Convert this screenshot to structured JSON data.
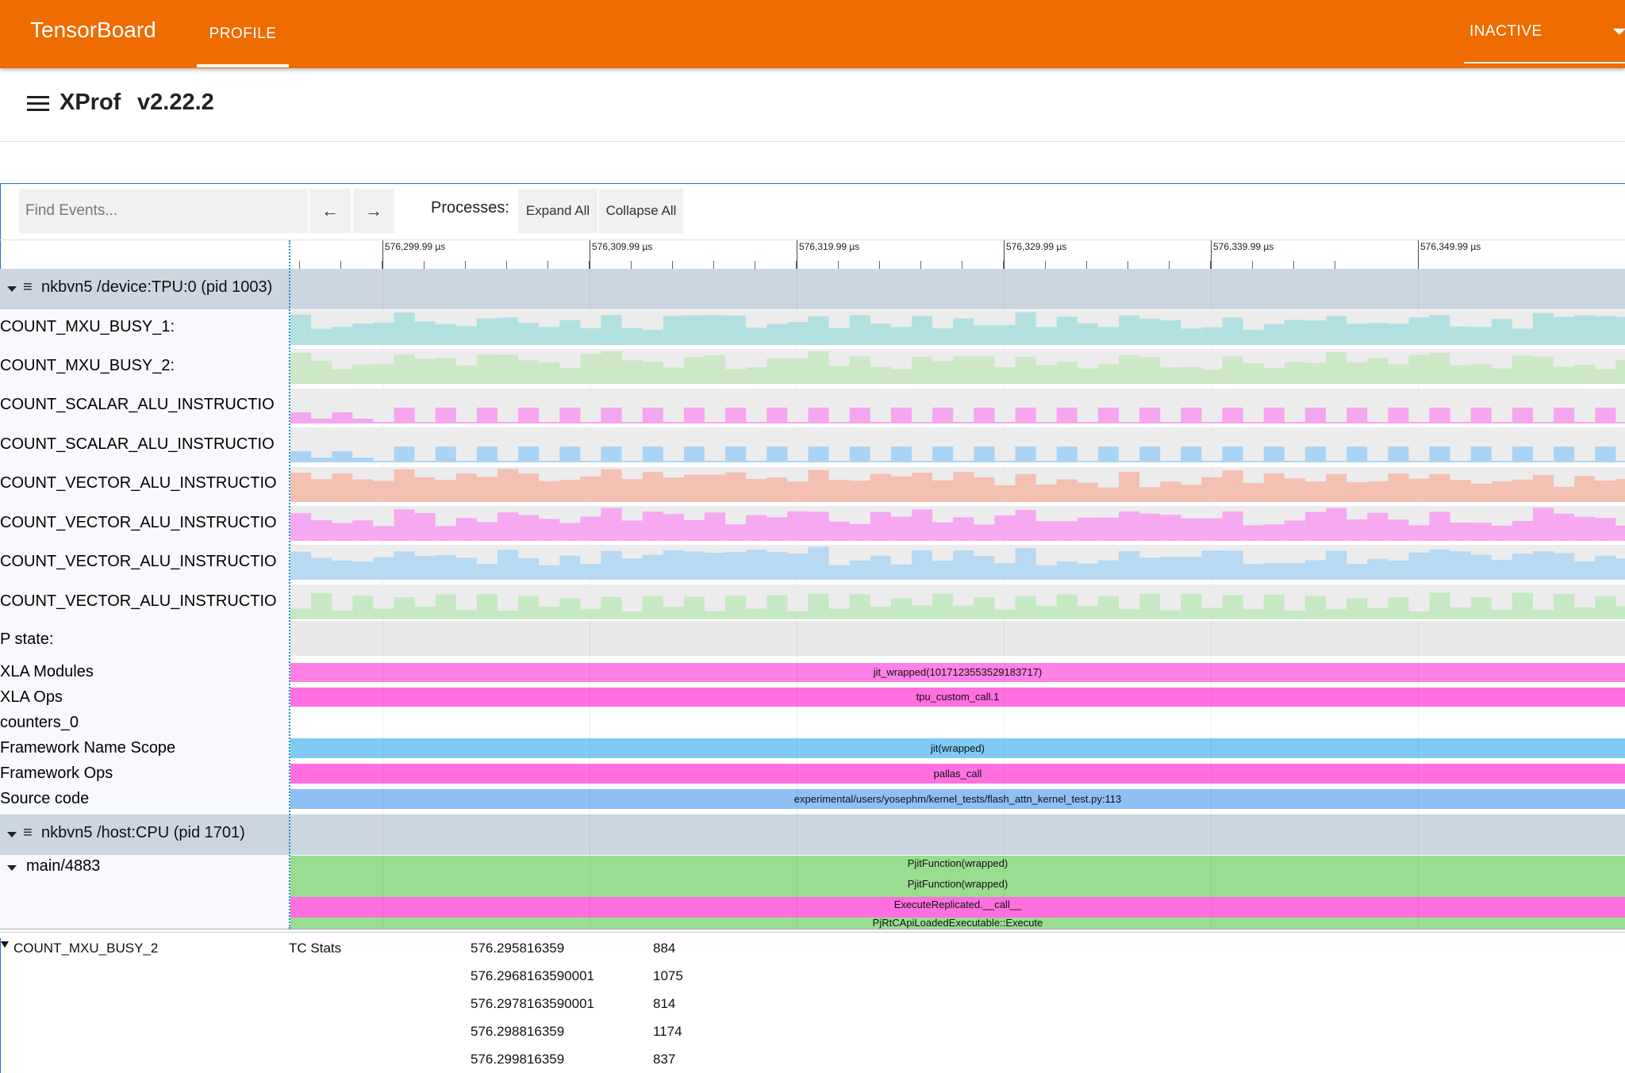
{
  "topbar": {
    "brand": "TensorBoard",
    "tab": "PROFILE",
    "status": "INACTIVE"
  },
  "header": {
    "title": "XProf",
    "version": "v2.22.2"
  },
  "toolbar": {
    "search_placeholder": "Find Events...",
    "prev_label": "←",
    "next_label": "→",
    "processes_label": "Processes:",
    "expand_all": "Expand All",
    "collapse_all": "Collapse All"
  },
  "ruler": {
    "ticks": [
      "576,299.99 µs",
      "576,309.99 µs",
      "576,319.99 µs",
      "576,329.99 µs",
      "576,339.99 µs",
      "576,349.99 µs"
    ]
  },
  "processes": [
    {
      "name": "nkbvn5 /device:TPU:0 (pid 1003)"
    },
    {
      "name": "nkbvn5 /host:CPU (pid 1701)"
    }
  ],
  "counter_tracks": [
    {
      "label": "COUNT_MXU_BUSY_1:",
      "color": "#b2e0e0",
      "style": "bars"
    },
    {
      "label": "COUNT_MXU_BUSY_2:",
      "color": "#cce8c6",
      "style": "bars"
    },
    {
      "label": "COUNT_SCALAR_ALU_INSTRUCTIO",
      "color": "#f5a6ef",
      "style": "pulse"
    },
    {
      "label": "COUNT_SCALAR_ALU_INSTRUCTIO",
      "color": "#a9d4f5",
      "style": "pulse"
    },
    {
      "label": "COUNT_VECTOR_ALU_INSTRUCTIO",
      "color": "#f3c0b2",
      "style": "bars"
    },
    {
      "label": "COUNT_VECTOR_ALU_INSTRUCTIO",
      "color": "#f6a8f1",
      "style": "bars"
    },
    {
      "label": "COUNT_VECTOR_ALU_INSTRUCTIO",
      "color": "#b7d9f2",
      "style": "bars"
    },
    {
      "label": "COUNT_VECTOR_ALU_INSTRUCTIO",
      "color": "#c5e9c2",
      "style": "spiky"
    }
  ],
  "pstate_label": "P state:",
  "slice_tracks": [
    {
      "label": "XLA Modules",
      "slice": "jit_wrapped(1017123553529183717)",
      "color": "#ff80e6"
    },
    {
      "label": "XLA Ops",
      "slice": "tpu_custom_call.1",
      "color": "#ff6fe0"
    },
    {
      "label": "counters_0",
      "slice": "",
      "color": ""
    },
    {
      "label": "Framework Name Scope",
      "slice": "jit(wrapped)",
      "color": "#7fcaf5"
    },
    {
      "label": "Framework Ops",
      "slice": "pallas_call",
      "color": "#ff6fe0"
    },
    {
      "label": "Source code",
      "slice": "experimental/users/yosephm/kernel_tests/flash_attn_kernel_test.py:113",
      "color": "#8fbff5"
    }
  ],
  "thread": {
    "label": "main/4883",
    "slices": [
      {
        "text": "PjitFunction(wrapped)",
        "color": "#99dd90"
      },
      {
        "text": "PjitFunction(wrapped)",
        "color": "#99dd90"
      },
      {
        "text": "ExecuteReplicated.__call__",
        "color": "#ff6fe0"
      },
      {
        "text": "PjRtCApiLoadedExecutable::Execute",
        "color": "#99dd90"
      }
    ]
  },
  "details": {
    "name": "COUNT_MXU_BUSY_2",
    "category": "TC Stats",
    "rows": [
      {
        "time": "576.295816359",
        "value": "884"
      },
      {
        "time": "576.2968163590001",
        "value": "1075"
      },
      {
        "time": "576.2978163590001",
        "value": "814"
      },
      {
        "time": "576.298816359",
        "value": "1174"
      },
      {
        "time": "576.299816359",
        "value": "837"
      }
    ]
  }
}
